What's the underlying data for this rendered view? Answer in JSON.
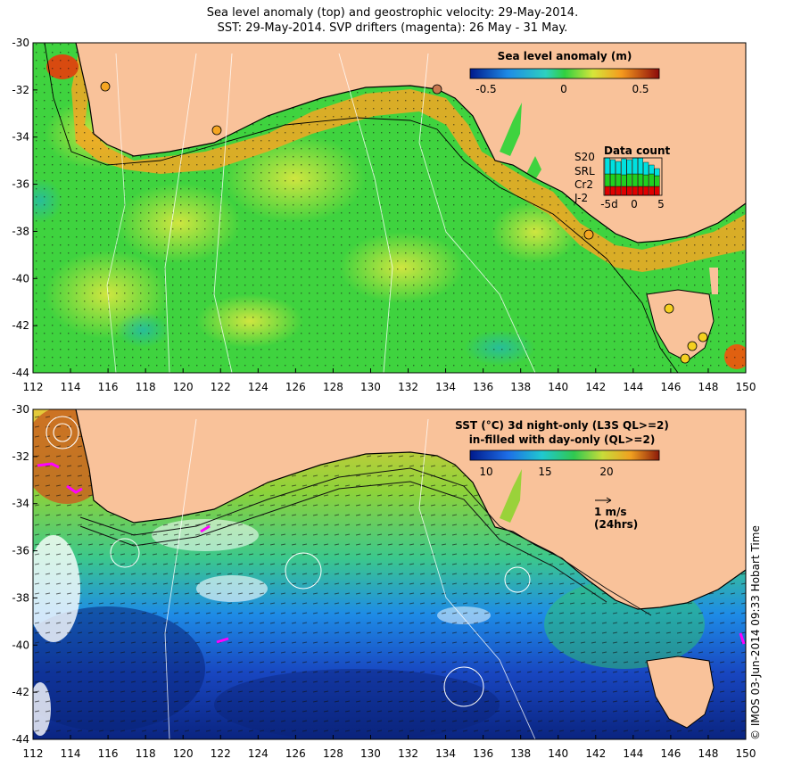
{
  "header": {
    "title_line1": "Sea level anomaly (top) and geostrophic velocity: 29-May-2014.",
    "title_line2": "SST: 29-May-2014. SVP drifters (magenta): 26 May - 31 May."
  },
  "axes": {
    "lon_ticks": [
      "112",
      "114",
      "116",
      "118",
      "120",
      "122",
      "124",
      "126",
      "128",
      "130",
      "132",
      "134",
      "136",
      "138",
      "140",
      "142",
      "144",
      "146",
      "148",
      "150"
    ],
    "lat_ticks": [
      "-30",
      "-32",
      "-34",
      "-36",
      "-38",
      "-40",
      "-42",
      "-44"
    ]
  },
  "top_panel": {
    "colorbar_title": "Sea level anomaly (m)",
    "colorbar_ticks": [
      "-0.5",
      "0",
      "0.5"
    ],
    "data_count": {
      "title": "Data count",
      "series": [
        {
          "name": "S20",
          "color": "#000000"
        },
        {
          "name": "SRL",
          "color": "#00e0e0"
        },
        {
          "name": "Cr2",
          "color": "#20d020"
        },
        {
          "name": "J-2",
          "color": "#e00000"
        }
      ],
      "x_ticks": [
        "-5d",
        "0",
        "5"
      ]
    }
  },
  "bottom_panel": {
    "legend_line1": "SST (°C)  3d night-only (L3S QL>=2)",
    "legend_line2": "in-filled with day-only (QL>=2)",
    "colorbar_ticks": [
      "10",
      "15",
      "20"
    ],
    "velocity_scale_label": "1 m/s",
    "velocity_scale_sublabel": "(24hrs)"
  },
  "credit": "© IMOS 03-Jun-2014 09:33 Hobart Time",
  "colors": {
    "land": "#f9c29a",
    "sla_ocean": "#3fd33f",
    "sla_positive": "#c8e63a",
    "coastal_high": "#f5a623",
    "sst_warm": "#e3c83d",
    "sst_mid": "#47c47a",
    "sst_cool": "#1e64c8",
    "sst_cold": "#0a2a8c",
    "drifter": "#ff00ff"
  }
}
